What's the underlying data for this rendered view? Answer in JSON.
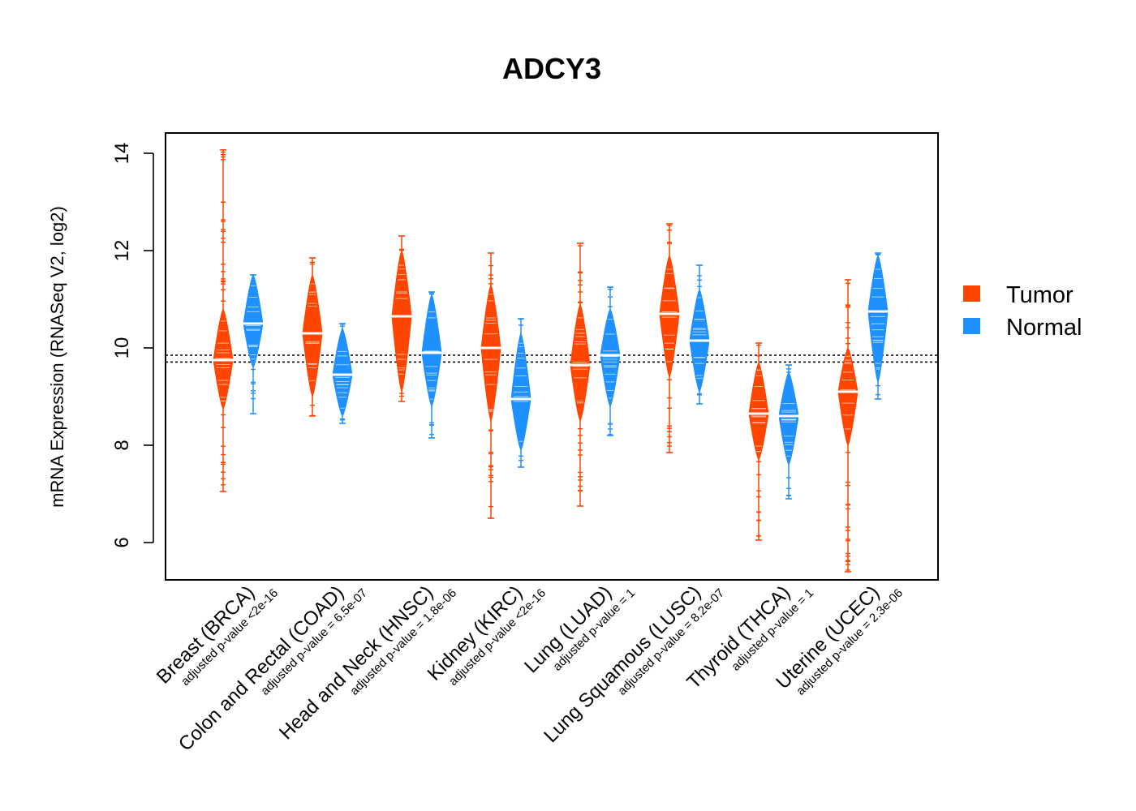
{
  "chart_data": {
    "type": "violin",
    "title": "ADCY3",
    "ylabel": "mRNA Expression (RNASeq V2, log2)",
    "xlabel": "",
    "ylim": [
      5.2,
      14.4
    ],
    "yticks": [
      6,
      8,
      10,
      12,
      14
    ],
    "reference_lines": [
      9.71,
      9.85
    ],
    "legend": {
      "position": "right",
      "entries": [
        {
          "label": "Tumor",
          "color": "#FF4500"
        },
        {
          "label": "Normal",
          "color": "#1E90FF"
        }
      ]
    },
    "categories": [
      {
        "label": "Breast (BRCA)",
        "pvalue": "adjusted p-value <2e-16",
        "tumor": {
          "median": 9.75,
          "core": [
            8.75,
            10.8
          ],
          "range": [
            7.05,
            14.07
          ]
        },
        "normal": {
          "median": 10.5,
          "core": [
            9.6,
            11.5
          ],
          "range": [
            8.65,
            11.5
          ]
        }
      },
      {
        "label": "Colon and Rectal (COAD)",
        "pvalue": "adjusted p-value = 6.5e-07",
        "tumor": {
          "median": 10.3,
          "core": [
            9.0,
            11.5
          ],
          "range": [
            8.6,
            11.85
          ]
        },
        "normal": {
          "median": 9.45,
          "core": [
            8.6,
            10.4
          ],
          "range": [
            8.45,
            10.5
          ]
        }
      },
      {
        "label": "Head and Neck (HNSC)",
        "pvalue": "adjusted p-value = 1.8e-06",
        "tumor": {
          "median": 10.65,
          "core": [
            9.1,
            12.0
          ],
          "range": [
            8.9,
            12.3
          ]
        },
        "normal": {
          "median": 9.9,
          "core": [
            8.8,
            11.1
          ],
          "range": [
            8.15,
            11.15
          ]
        }
      },
      {
        "label": "Kidney (KIRC)",
        "pvalue": "adjusted p-value <2e-16",
        "tumor": {
          "median": 10.0,
          "core": [
            8.5,
            11.3
          ],
          "range": [
            6.5,
            11.95
          ]
        },
        "normal": {
          "median": 8.95,
          "core": [
            7.9,
            10.3
          ],
          "range": [
            7.55,
            10.6
          ]
        }
      },
      {
        "label": "Lung (LUAD)",
        "pvalue": "adjusted p-value = 1",
        "tumor": {
          "median": 9.65,
          "core": [
            8.5,
            10.9
          ],
          "range": [
            6.75,
            12.15
          ]
        },
        "normal": {
          "median": 9.85,
          "core": [
            8.8,
            10.8
          ],
          "range": [
            8.2,
            11.25
          ]
        }
      },
      {
        "label": "Lung Squamous (LUSC)",
        "pvalue": "adjusted p-value = 8.2e-07",
        "tumor": {
          "median": 10.7,
          "core": [
            9.4,
            11.9
          ],
          "range": [
            7.85,
            12.55
          ]
        },
        "normal": {
          "median": 10.15,
          "core": [
            9.1,
            11.2
          ],
          "range": [
            8.85,
            11.7
          ]
        }
      },
      {
        "label": "Thyroid (THCA)",
        "pvalue": "adjusted p-value = 1",
        "tumor": {
          "median": 8.65,
          "core": [
            7.7,
            9.7
          ],
          "range": [
            6.05,
            10.1
          ]
        },
        "normal": {
          "median": 8.6,
          "core": [
            7.6,
            9.5
          ],
          "range": [
            6.9,
            9.65
          ]
        }
      },
      {
        "label": "Uterine (UCEC)",
        "pvalue": "adjusted p-value = 2.3e-06",
        "tumor": {
          "median": 9.1,
          "core": [
            8.0,
            10.0
          ],
          "range": [
            5.4,
            11.4
          ]
        },
        "normal": {
          "median": 10.75,
          "core": [
            9.3,
            11.9
          ],
          "range": [
            8.95,
            11.95
          ]
        }
      }
    ]
  }
}
